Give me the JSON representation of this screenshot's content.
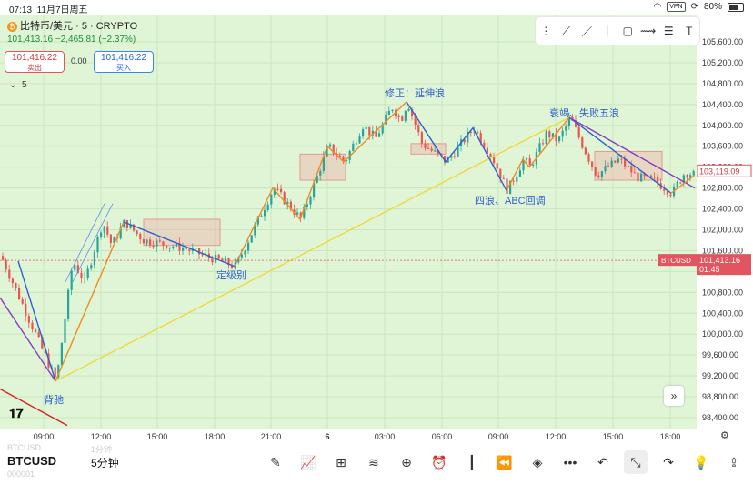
{
  "status_bar": {
    "time": "07:13",
    "date": "11月7日周五",
    "vpn": "VPN",
    "battery": "80%"
  },
  "header": {
    "coin_glyph": "₿",
    "title": "比特币/美元 · 5 · CRYPTO",
    "last": "101,413.16",
    "change": "−2,465.81 (−2.37%)"
  },
  "trade": {
    "sell_price": "101,416.22",
    "sell_label": "卖出",
    "spread": "0.00",
    "buy_price": "101,416.22",
    "buy_label": "买入"
  },
  "interval_toggle": "5",
  "drawing_tools": [
    "trend-line-tool",
    "ray-tool",
    "vertical-line-tool",
    "rectangle-tool",
    "path-tool",
    "fib-tool",
    "text-tool"
  ],
  "colors": {
    "background": "#dff5d6",
    "up": "#26a69a",
    "down": "#ef5350",
    "wave_blue": "#2f5fd0",
    "wave_orange": "#f08a24",
    "yellow": "#f1d83a",
    "purple": "#8a3bc4",
    "price_line": "#e0555f"
  },
  "chart_data": {
    "type": "candlestick",
    "symbol": "BTCUSD",
    "interval": "5分钟",
    "ylim": [
      98400,
      105800
    ],
    "y_ticks": [
      98400,
      98800,
      99200,
      99600,
      100000,
      100400,
      100800,
      101200,
      101600,
      102000,
      102400,
      102800,
      103200,
      103600,
      104000,
      104400,
      104800,
      105200,
      105600
    ],
    "x_ticks": [
      "09:00",
      "12:00",
      "15:00",
      "18:00",
      "21:00",
      "6",
      "03:00",
      "06:00",
      "09:00",
      "12:00",
      "15:00",
      "18:00"
    ],
    "wave_points": [
      {
        "t": 0,
        "p": 101500
      },
      {
        "t": 61,
        "p": 99100
      },
      {
        "t": 79,
        "p": 101400
      },
      {
        "t": 92,
        "p": 101000
      },
      {
        "t": 112,
        "p": 102150
      },
      {
        "t": 122,
        "p": 101700
      },
      {
        "t": 136,
        "p": 102150
      },
      {
        "t": 157,
        "p": 101800
      },
      {
        "t": 200,
        "p": 101650
      },
      {
        "t": 258,
        "p": 101300
      },
      {
        "t": 300,
        "p": 102800
      },
      {
        "t": 330,
        "p": 102200
      },
      {
        "t": 360,
        "p": 103600
      },
      {
        "t": 378,
        "p": 103300
      },
      {
        "t": 398,
        "p": 104000
      },
      {
        "t": 412,
        "p": 103750
      },
      {
        "t": 430,
        "p": 104350
      },
      {
        "t": 440,
        "p": 104100
      },
      {
        "t": 447,
        "p": 104450
      },
      {
        "t": 463,
        "p": 103650
      },
      {
        "t": 490,
        "p": 103300
      },
      {
        "t": 520,
        "p": 103950
      },
      {
        "t": 540,
        "p": 103400
      },
      {
        "t": 557,
        "p": 102750
      },
      {
        "t": 575,
        "p": 103350
      },
      {
        "t": 582,
        "p": 103200
      },
      {
        "t": 600,
        "p": 103850
      },
      {
        "t": 613,
        "p": 103700
      },
      {
        "t": 626,
        "p": 104150
      },
      {
        "t": 640,
        "p": 103600
      },
      {
        "t": 655,
        "p": 103050
      },
      {
        "t": 680,
        "p": 103350
      },
      {
        "t": 700,
        "p": 103000
      },
      {
        "t": 718,
        "p": 102950
      },
      {
        "t": 738,
        "p": 102700
      },
      {
        "t": 752,
        "p": 103100
      },
      {
        "t": 764,
        "p": 103050
      }
    ],
    "current_price": 101413.16,
    "current_label": "BTCUSD",
    "countdown": "01:45",
    "last_close_label": "103,119.09",
    "annotations": [
      "背驰",
      "定级别",
      "修正：延伸浪",
      "四浪、ABC回调",
      "衰竭、失败五浪"
    ]
  },
  "bottom_bar": {
    "symbol": "BTCUSD",
    "interval": "5分钟",
    "ghost_symbol": "BTCUSD",
    "ghost_interval": "1分钟",
    "ghost_code": "000001",
    "tools": [
      "draw-icon",
      "indicators-icon",
      "layout-icon",
      "templates-icon",
      "add-icon",
      "alert-icon",
      "candles-icon",
      "replay-icon",
      "layers-icon",
      "more-icon",
      "undo-icon",
      "fullscreen-exit-icon",
      "redo-icon",
      "ideas-icon",
      "share-icon"
    ]
  }
}
